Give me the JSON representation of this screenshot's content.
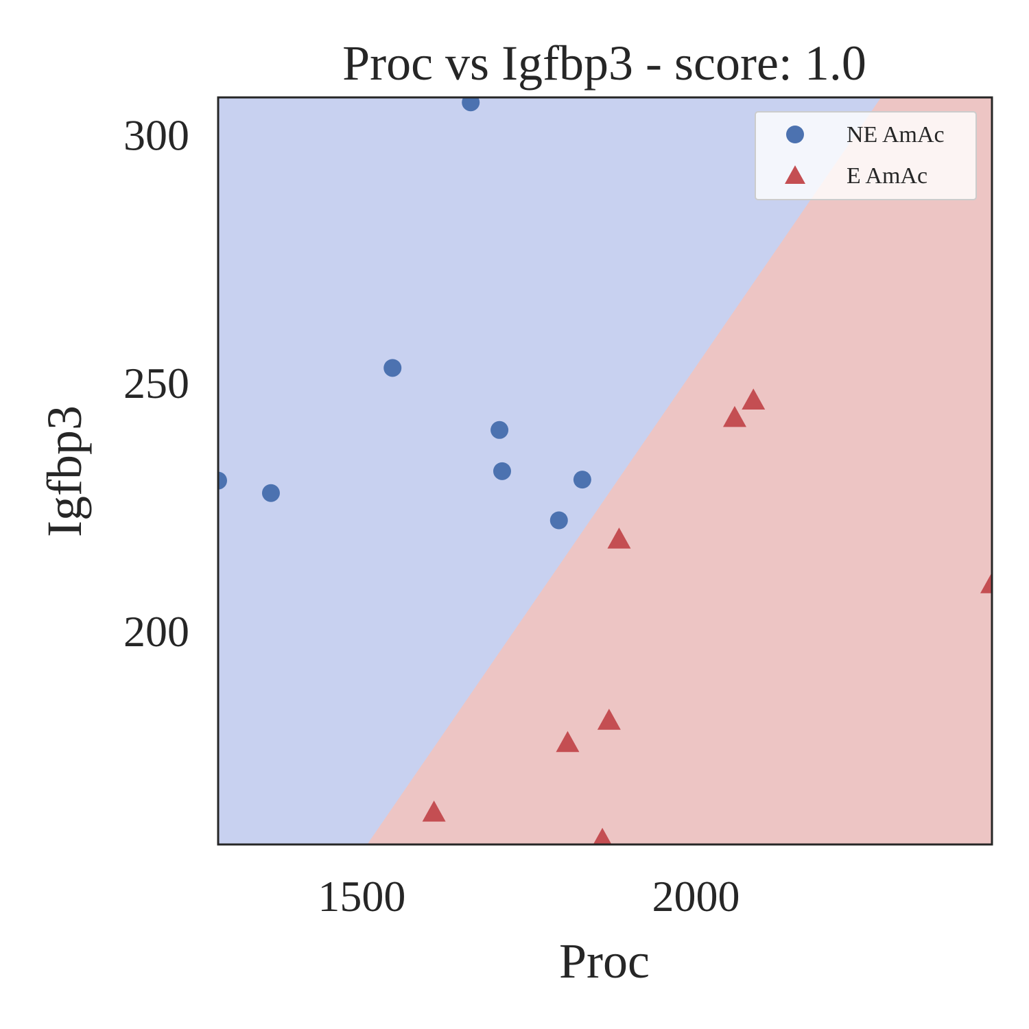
{
  "chart_data": {
    "type": "scatter",
    "title": "Proc vs Igfbp3 - score: 1.0",
    "xlabel": "Proc",
    "ylabel": "Igfbp3",
    "xlim": [
      1285,
      2443
    ],
    "ylim": [
      157,
      307.5
    ],
    "xticks": [
      1500,
      2000
    ],
    "yticks": [
      200,
      250,
      300
    ],
    "xtick_labels": [
      "1500",
      "2000"
    ],
    "ytick_labels": [
      "200",
      "250",
      "300"
    ],
    "grid": false,
    "legend_position": "top-right",
    "decision_boundary": [
      [
        1508,
        157
      ],
      [
        2277,
        307.5
      ]
    ],
    "regions": [
      {
        "name": "NE AmAc",
        "side": "upper-left",
        "color": "#c8d1f0"
      },
      {
        "name": "E AmAc",
        "side": "lower-right",
        "color": "#edc5c4"
      }
    ],
    "series": [
      {
        "name": "NE AmAc",
        "marker": "circle",
        "color": "#4c72b0",
        "points": [
          [
            1663,
            306.5
          ],
          [
            1546,
            253
          ],
          [
            1706,
            240.5
          ],
          [
            1710,
            232.2
          ],
          [
            1285,
            230.3
          ],
          [
            1364,
            227.8
          ],
          [
            1830,
            230.5
          ],
          [
            1795,
            222.3
          ]
        ]
      },
      {
        "name": "E AmAc",
        "marker": "triangle",
        "color": "#c44e52",
        "points": [
          [
            1608,
            163.5
          ],
          [
            1808,
            177.5
          ],
          [
            1870,
            182
          ],
          [
            1885,
            218.5
          ],
          [
            2058,
            243
          ],
          [
            2086,
            246.5
          ],
          [
            2443,
            209.5
          ],
          [
            1860,
            158
          ]
        ]
      }
    ]
  }
}
